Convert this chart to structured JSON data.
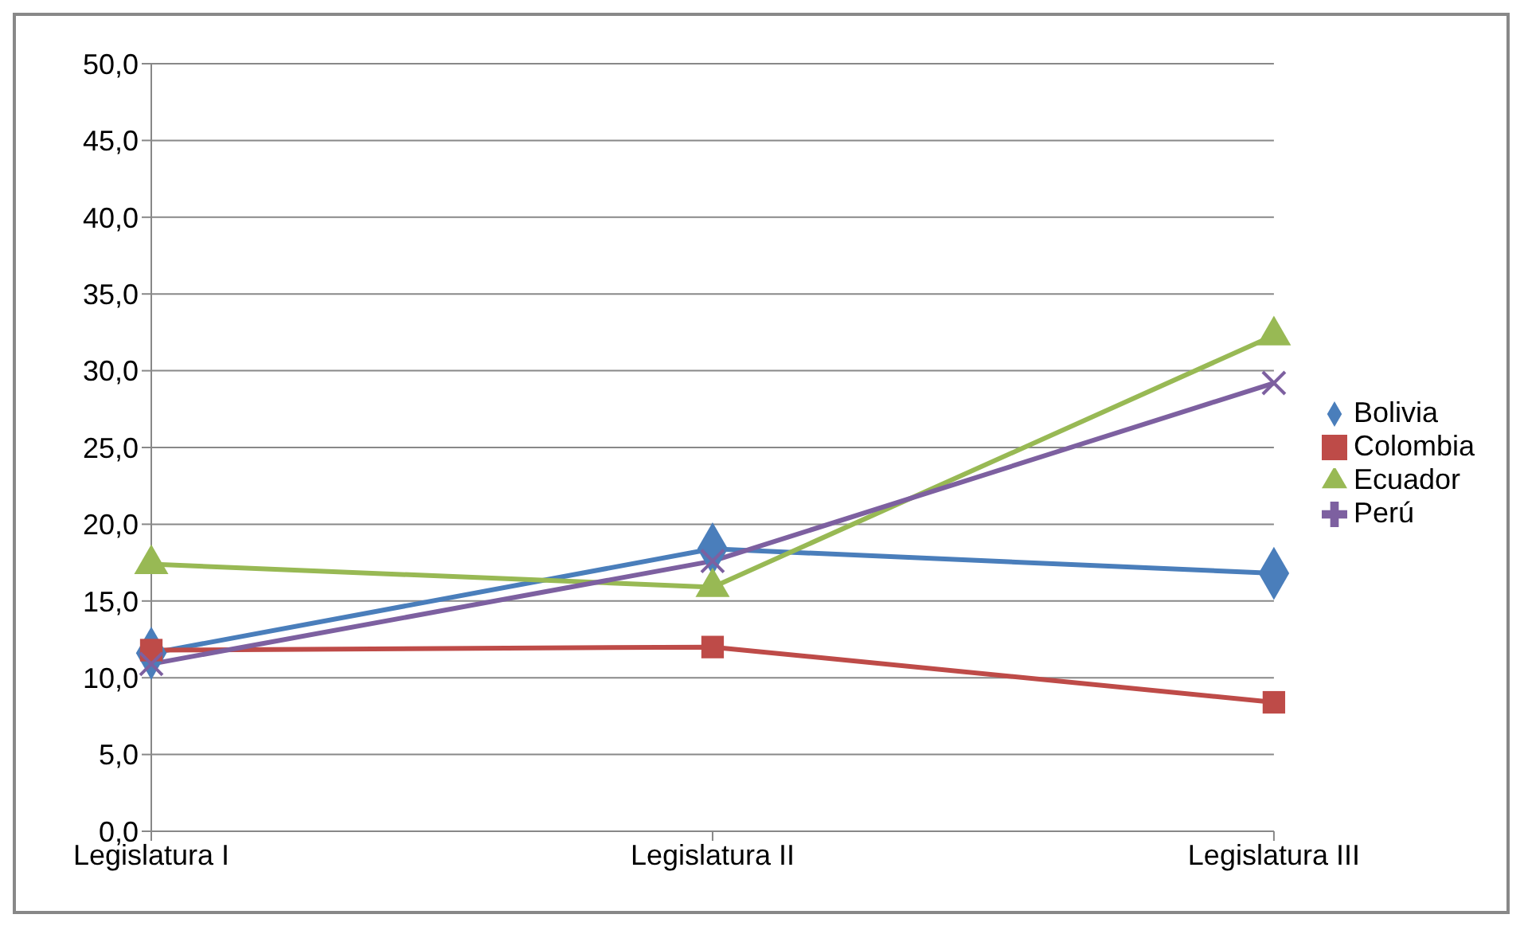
{
  "chart_data": {
    "type": "line",
    "categories": [
      "Legislatura I",
      "Legislatura II",
      "Legislatura III"
    ],
    "series": [
      {
        "name": "Bolivia",
        "color": "#4a7ebb",
        "marker": "diamond",
        "values": [
          11.6,
          18.4,
          16.8
        ]
      },
      {
        "name": "Colombia",
        "color": "#be4b48",
        "marker": "square",
        "values": [
          11.8,
          12.0,
          8.4
        ]
      },
      {
        "name": "Ecuador",
        "color": "#98b954",
        "marker": "triangle",
        "values": [
          17.4,
          15.9,
          32.3
        ]
      },
      {
        "name": "Perú",
        "color": "#7d60a0",
        "marker": "cross",
        "values": [
          10.9,
          17.6,
          29.2
        ]
      }
    ],
    "ylim": [
      0,
      50
    ],
    "yticks": [
      {
        "value": 0,
        "label": "0,0"
      },
      {
        "value": 5,
        "label": "5,0"
      },
      {
        "value": 10,
        "label": "10,0"
      },
      {
        "value": 15,
        "label": "15,0"
      },
      {
        "value": 20,
        "label": "20,0"
      },
      {
        "value": 25,
        "label": "25,0"
      },
      {
        "value": 30,
        "label": "30,0"
      },
      {
        "value": 35,
        "label": "35,0"
      },
      {
        "value": 40,
        "label": "40,0"
      },
      {
        "value": 45,
        "label": "45,0"
      },
      {
        "value": 50,
        "label": "50,0"
      }
    ],
    "grid": "y",
    "legend": "right",
    "line_style": "solid"
  }
}
